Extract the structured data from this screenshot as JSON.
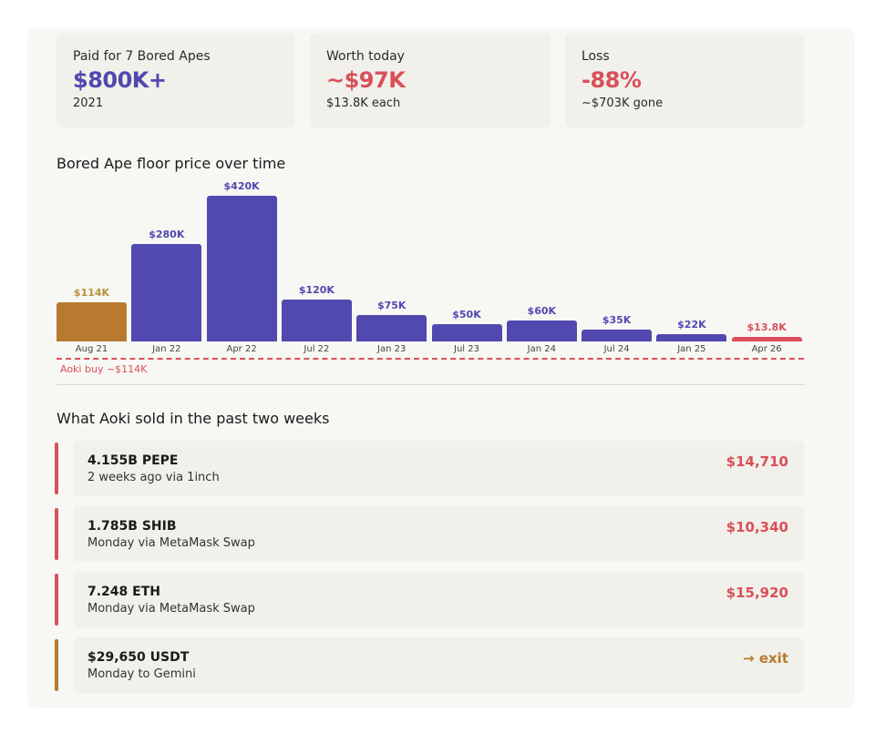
{
  "colors": {
    "purple": "#5148b0",
    "gold": "#b77a2e",
    "red": "#d9505a"
  },
  "stats": [
    {
      "label": "Paid for 7 Bored Apes",
      "value": "$800K+",
      "sub": "2021",
      "color": "#5148b0"
    },
    {
      "label": "Worth today",
      "value": "~$97K",
      "sub": "$13.8K each",
      "color": "#d9505a"
    },
    {
      "label": "Loss",
      "value": "-88%",
      "sub": "~$703K gone",
      "color": "#d9505a"
    }
  ],
  "chart_data": {
    "type": "bar",
    "title": "Bored Ape floor price over time",
    "categories": [
      "Aug 21",
      "Jan 22",
      "Apr 22",
      "Jul 22",
      "Jan 23",
      "Jul 23",
      "Jan 24",
      "Jul 24",
      "Jan 25",
      "Apr 26"
    ],
    "values": [
      114,
      280,
      420,
      120,
      75,
      50,
      60,
      35,
      22,
      13.8
    ],
    "unit": "$K",
    "labels": [
      "$114K",
      "$280K",
      "$420K",
      "$120K",
      "$75K",
      "$50K",
      "$60K",
      "$35K",
      "$22K",
      "$13.8K"
    ],
    "bar_colors": [
      "#b77a2e",
      "#5148b0",
      "#5148b0",
      "#5148b0",
      "#5148b0",
      "#5148b0",
      "#5148b0",
      "#5148b0",
      "#5148b0",
      "#d9505a"
    ],
    "label_colors": [
      "#b8913a",
      "#5148b0",
      "#5148b0",
      "#5148b0",
      "#5148b0",
      "#5148b0",
      "#5148b0",
      "#5148b0",
      "#5148b0",
      "#d9505a"
    ],
    "reference_line": {
      "value": 114,
      "label": "Aoki buy ~$114K",
      "color": "#d9505a"
    }
  },
  "sales": {
    "title": "What Aoki sold in the past two weeks",
    "items": [
      {
        "name": "4.155B PEPE",
        "meta": "2 weeks ago via 1inch",
        "amount": "$14,710",
        "color": "#d9505a"
      },
      {
        "name": "1.785B SHIB",
        "meta": "Monday via MetaMask Swap",
        "amount": "$10,340",
        "color": "#d9505a"
      },
      {
        "name": "7.248 ETH",
        "meta": "Monday via MetaMask Swap",
        "amount": "$15,920",
        "color": "#d9505a"
      },
      {
        "name": "$29,650 USDT",
        "meta": "Monday to Gemini",
        "amount": "→ exit",
        "color": "#b77a2e"
      }
    ]
  }
}
